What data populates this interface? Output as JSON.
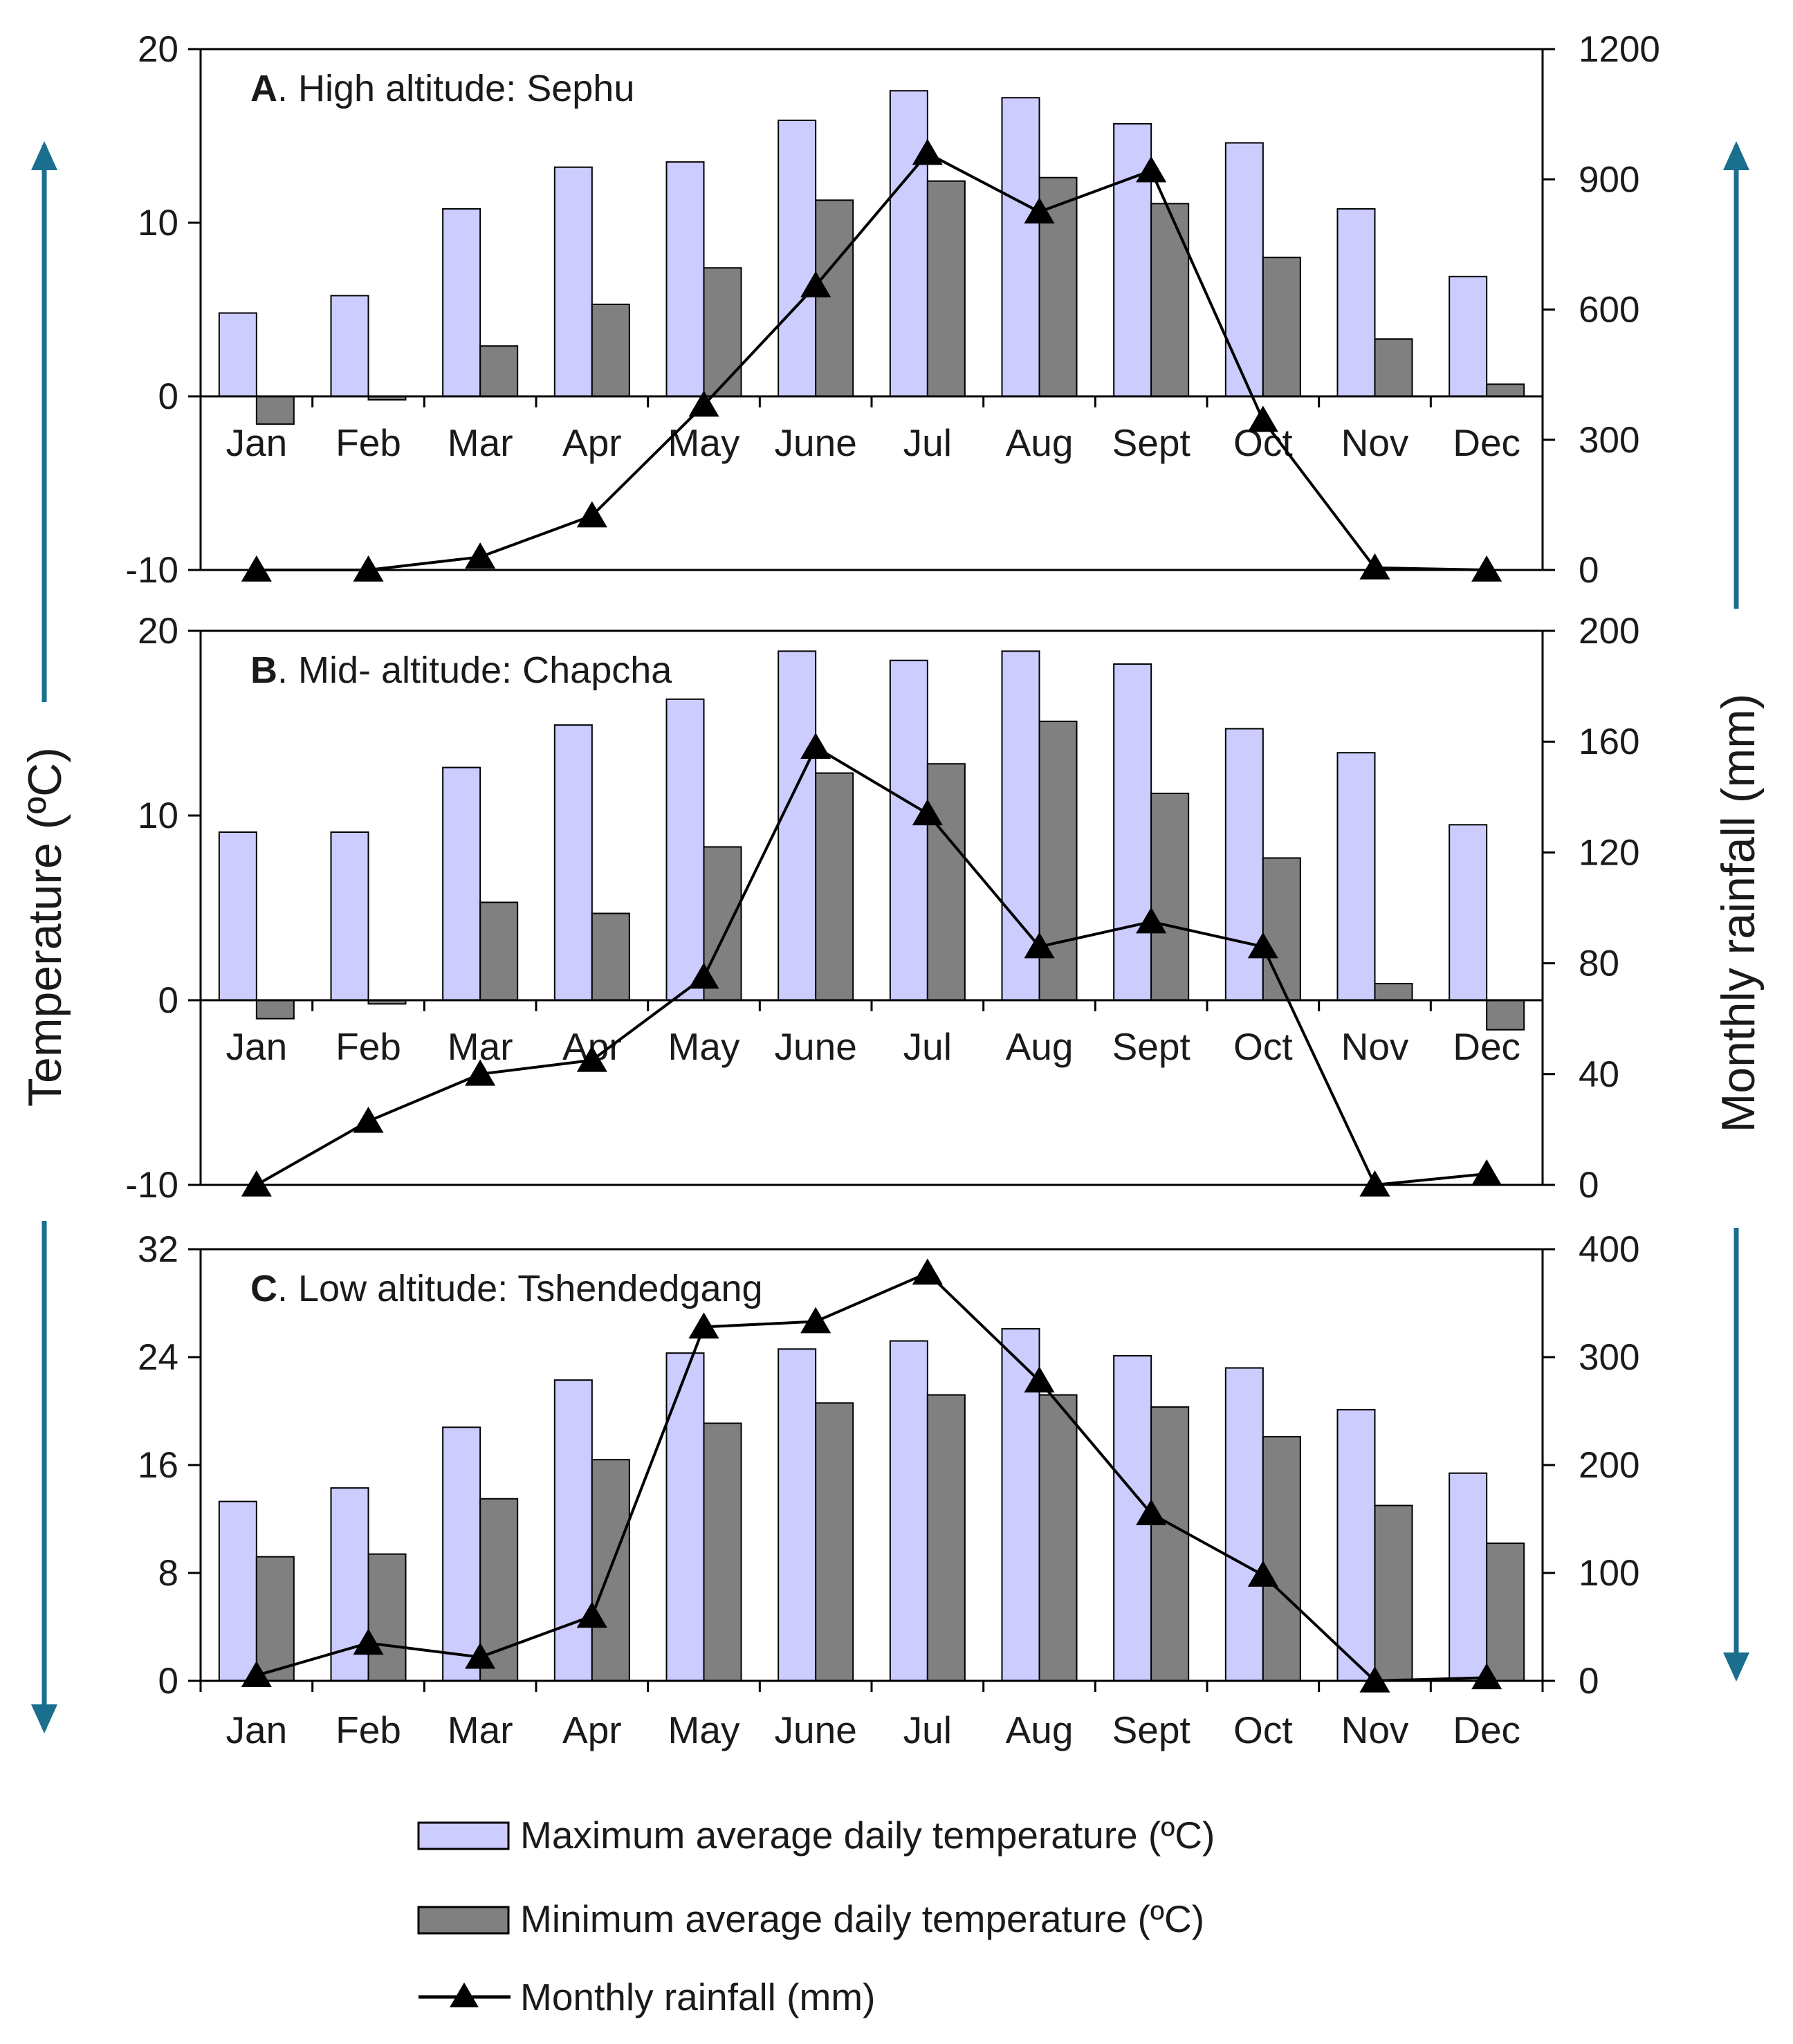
{
  "chart_data": {
    "type": "bar",
    "title": "",
    "ylabel_left": "Temperature (ºC)",
    "ylabel_right": "Monthly rainfall (mm)",
    "categories": [
      "Jan",
      "Feb",
      "Mar",
      "Apr",
      "May",
      "June",
      "Jul",
      "Aug",
      "Sept",
      "Oct",
      "Nov",
      "Dec"
    ],
    "legend": {
      "max_temp": "Maximum average daily temperature (ºC)",
      "min_temp": "Minimum average daily temperature  (ºC)",
      "rainfall": "Monthly rainfall (mm)",
      "position": "bottom-center"
    },
    "colors": {
      "max_bar": "#ccccff",
      "min_bar": "#808080",
      "line": "#000000",
      "arrow": "#1a6e8e"
    },
    "panels": [
      {
        "id": "A",
        "title_letter": "A",
        "title_rest": ". High altitude: Sephu",
        "ylim": [
          -10,
          20
        ],
        "yticks": [
          "20",
          "10",
          "0",
          "-10"
        ],
        "ylim_right": [
          0,
          1200
        ],
        "yticks_right": [
          "1200",
          "900",
          "600",
          "300",
          "0"
        ],
        "series": [
          {
            "name": "Maximum average daily temperature (ºC)",
            "type": "bar",
            "values": [
              4.8,
              5.8,
              10.8,
              13.2,
              13.5,
              15.9,
              17.6,
              17.2,
              15.7,
              14.6,
              10.8,
              6.9
            ]
          },
          {
            "name": "Minimum average daily temperature (ºC)",
            "type": "bar",
            "values": [
              -1.6,
              -0.2,
              2.9,
              5.3,
              7.4,
              11.3,
              12.4,
              12.6,
              11.1,
              8.0,
              3.3,
              0.7
            ]
          },
          {
            "name": "Monthly rainfall (mm)",
            "type": "line",
            "axis": "right",
            "values": [
              0,
              0,
              30,
              125,
              380,
              655,
              960,
              825,
              920,
              345,
              5,
              0
            ]
          }
        ]
      },
      {
        "id": "B",
        "title_letter": "B",
        "title_rest": ". Mid- altitude: Chapcha",
        "ylim": [
          -10,
          20
        ],
        "yticks": [
          "20",
          "10",
          "0",
          "-10"
        ],
        "ylim_right": [
          0,
          200
        ],
        "yticks_right": [
          "200",
          "160",
          "120",
          "80",
          "40",
          "0"
        ],
        "series": [
          {
            "name": "Maximum average daily temperature (ºC)",
            "type": "bar",
            "values": [
              9.1,
              9.1,
              12.6,
              14.9,
              16.3,
              18.9,
              18.4,
              18.9,
              18.2,
              14.7,
              13.4,
              9.5
            ]
          },
          {
            "name": "Minimum average daily temperature (ºC)",
            "type": "bar",
            "values": [
              -1.0,
              -0.2,
              5.3,
              4.7,
              8.3,
              12.3,
              12.8,
              15.1,
              11.2,
              7.7,
              0.9,
              -1.6
            ]
          },
          {
            "name": "Monthly rainfall (mm)",
            "type": "line",
            "axis": "right",
            "values": [
              0,
              23,
              40,
              45,
              75,
              158,
              134,
              86,
              95,
              86,
              0,
              4
            ]
          }
        ]
      },
      {
        "id": "C",
        "title_letter": "C",
        "title_rest": ". Low altitude: Tshendedgang",
        "ylim": [
          0,
          32
        ],
        "yticks": [
          "32",
          "24",
          "16",
          "8",
          "0"
        ],
        "ylim_right": [
          0,
          400
        ],
        "yticks_right": [
          "400",
          "300",
          "200",
          "100",
          "0"
        ],
        "series": [
          {
            "name": "Maximum average daily temperature (ºC)",
            "type": "bar",
            "values": [
              13.3,
              14.3,
              18.8,
              22.3,
              24.3,
              24.6,
              25.2,
              26.1,
              24.1,
              23.2,
              20.1,
              15.4
            ]
          },
          {
            "name": "Minimum average daily temperature (ºC)",
            "type": "bar",
            "values": [
              9.2,
              9.4,
              13.5,
              16.4,
              19.1,
              20.6,
              21.2,
              21.2,
              20.3,
              18.1,
              13.0,
              10.2
            ]
          },
          {
            "name": "Monthly rainfall (mm)",
            "type": "line",
            "axis": "right",
            "values": [
              5,
              35,
              22,
              60,
              328,
              333,
              378,
              278,
              155,
              98,
              0,
              3
            ]
          }
        ]
      }
    ]
  }
}
